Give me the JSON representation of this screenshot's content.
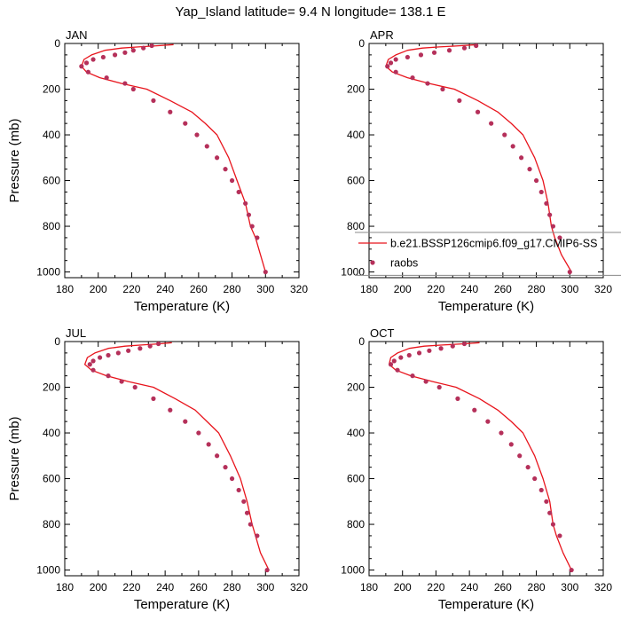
{
  "figure": {
    "title": "Yap_Island  latitude= 9.4 N longitude= 138.1 E"
  },
  "colors": {
    "model_line": "#e8141c",
    "raobs_marker": "#b5305a",
    "frame": "#000000"
  },
  "chart_data": [
    {
      "type": "line",
      "panel": "JAN",
      "xlabel": "Temperature (K)",
      "ylabel": "Pressure (mb)",
      "xlim": [
        180,
        320
      ],
      "ylim": [
        1025,
        0
      ],
      "yscale": "linear-inverted",
      "xticks": [
        180,
        200,
        220,
        240,
        260,
        280,
        300,
        320
      ],
      "yticks": [
        0,
        200,
        400,
        600,
        800,
        1000
      ],
      "legend": null,
      "series": [
        {
          "kind": "line",
          "x": [
            245,
            235,
            224,
            214,
            204,
            196,
            191.5,
            190,
            193,
            201,
            214,
            229,
            243,
            256,
            264,
            271,
            278,
            283,
            288,
            291,
            294,
            297,
            300
          ],
          "y": [
            5,
            10,
            15,
            20,
            30,
            50,
            70,
            100,
            125,
            150,
            175,
            200,
            250,
            300,
            350,
            400,
            500,
            600,
            700,
            800,
            850,
            925,
            1000
          ]
        },
        {
          "kind": "scatter",
          "x": [
            232,
            227,
            221,
            216,
            210,
            203,
            197,
            193,
            190,
            194,
            205,
            216,
            221,
            233,
            243,
            252,
            259,
            265,
            271,
            276,
            280,
            284,
            288,
            290,
            292,
            295,
            300
          ],
          "y": [
            10,
            20,
            30,
            40,
            50,
            60,
            70,
            85,
            100,
            125,
            150,
            175,
            200,
            250,
            300,
            350,
            400,
            450,
            500,
            550,
            600,
            650,
            700,
            750,
            800,
            850,
            1000
          ]
        }
      ]
    },
    {
      "type": "line",
      "panel": "APR",
      "xlabel": "Temperature (K)",
      "ylabel": "",
      "xlim": [
        180,
        320
      ],
      "ylim": [
        1025,
        0
      ],
      "yscale": "linear-inverted",
      "xticks": [
        180,
        200,
        220,
        240,
        260,
        280,
        300,
        320
      ],
      "yticks": [
        0,
        200,
        400,
        600,
        800,
        1000
      ],
      "legend": {
        "placement": "lower-right",
        "entries": [
          {
            "label": "b.e21.BSSP126cmip6.f09_g17.CMIP6-SS",
            "kind": "line"
          },
          {
            "label": "raobs",
            "kind": "marker"
          }
        ]
      },
      "series": [
        {
          "name": "b.e21.BSSP126cmip6.f09_g17.CMIP6-SS",
          "kind": "line",
          "x": [
            245,
            234,
            222,
            212,
            203,
            196,
            191.5,
            190,
            194,
            203,
            216,
            231,
            245,
            257,
            265,
            272,
            279,
            284,
            287,
            289,
            291,
            295,
            301
          ],
          "y": [
            5,
            10,
            15,
            20,
            30,
            50,
            70,
            100,
            125,
            150,
            175,
            200,
            250,
            300,
            350,
            400,
            500,
            600,
            700,
            800,
            850,
            925,
            1000
          ]
        },
        {
          "name": "raobs",
          "kind": "scatter",
          "x": [
            244,
            237,
            228,
            219,
            211,
            203,
            196,
            193,
            191,
            196,
            206,
            215,
            224,
            234,
            245,
            253,
            261,
            266,
            271,
            276,
            280,
            283,
            286,
            288,
            290,
            294,
            300
          ],
          "y": [
            10,
            20,
            30,
            40,
            50,
            60,
            70,
            85,
            100,
            125,
            150,
            175,
            200,
            250,
            300,
            350,
            400,
            450,
            500,
            550,
            600,
            650,
            700,
            750,
            800,
            850,
            1000
          ]
        }
      ]
    },
    {
      "type": "line",
      "panel": "JUL",
      "xlabel": "Temperature (K)",
      "ylabel": "Pressure (mb)",
      "xlim": [
        180,
        320
      ],
      "ylim": [
        1025,
        0
      ],
      "yscale": "linear-inverted",
      "xticks": [
        180,
        200,
        220,
        240,
        260,
        280,
        300,
        320
      ],
      "yticks": [
        0,
        200,
        400,
        600,
        800,
        1000
      ],
      "legend": null,
      "series": [
        {
          "kind": "line",
          "x": [
            244,
            236,
            226,
            216,
            206,
            198,
            193.5,
            192,
            196,
            205,
            218,
            233,
            246,
            258,
            265,
            272,
            279,
            285,
            289,
            292,
            294,
            297,
            302
          ],
          "y": [
            5,
            10,
            15,
            20,
            30,
            50,
            70,
            100,
            125,
            150,
            175,
            200,
            250,
            300,
            350,
            400,
            500,
            600,
            700,
            800,
            850,
            925,
            1000
          ]
        },
        {
          "kind": "scatter",
          "x": [
            236,
            231,
            225,
            218,
            212,
            206,
            201,
            197,
            195,
            197,
            206,
            214,
            222,
            233,
            243,
            252,
            260,
            266,
            271,
            276,
            280,
            284,
            287,
            289,
            291,
            295,
            301
          ],
          "y": [
            10,
            20,
            30,
            40,
            50,
            60,
            70,
            85,
            100,
            125,
            150,
            175,
            200,
            250,
            300,
            350,
            400,
            450,
            500,
            550,
            600,
            650,
            700,
            750,
            800,
            850,
            1000
          ]
        }
      ]
    },
    {
      "type": "line",
      "panel": "OCT",
      "xlabel": "Temperature (K)",
      "ylabel": "",
      "xlim": [
        180,
        320
      ],
      "ylim": [
        1025,
        0
      ],
      "yscale": "linear-inverted",
      "xticks": [
        180,
        200,
        220,
        240,
        260,
        280,
        300,
        320
      ],
      "yticks": [
        0,
        200,
        400,
        600,
        800,
        1000
      ],
      "legend": null,
      "series": [
        {
          "kind": "line",
          "x": [
            246,
            236,
            224,
            213,
            204,
            197,
            193,
            192,
            196,
            205,
            218,
            232,
            246,
            257,
            265,
            272,
            279,
            284,
            288,
            290,
            292,
            296,
            301
          ],
          "y": [
            5,
            10,
            15,
            20,
            30,
            50,
            70,
            100,
            125,
            150,
            175,
            200,
            250,
            300,
            350,
            400,
            500,
            600,
            700,
            800,
            850,
            925,
            1000
          ]
        },
        {
          "kind": "scatter",
          "x": [
            237,
            230,
            223,
            216,
            210,
            204,
            199,
            195,
            193,
            197,
            206,
            214,
            222,
            233,
            243,
            251,
            259,
            265,
            270,
            275,
            279,
            283,
            286,
            288,
            290,
            294,
            301
          ],
          "y": [
            10,
            20,
            30,
            40,
            50,
            60,
            70,
            85,
            100,
            125,
            150,
            175,
            200,
            250,
            300,
            350,
            400,
            450,
            500,
            550,
            600,
            650,
            700,
            750,
            800,
            850,
            1000
          ]
        }
      ]
    }
  ]
}
